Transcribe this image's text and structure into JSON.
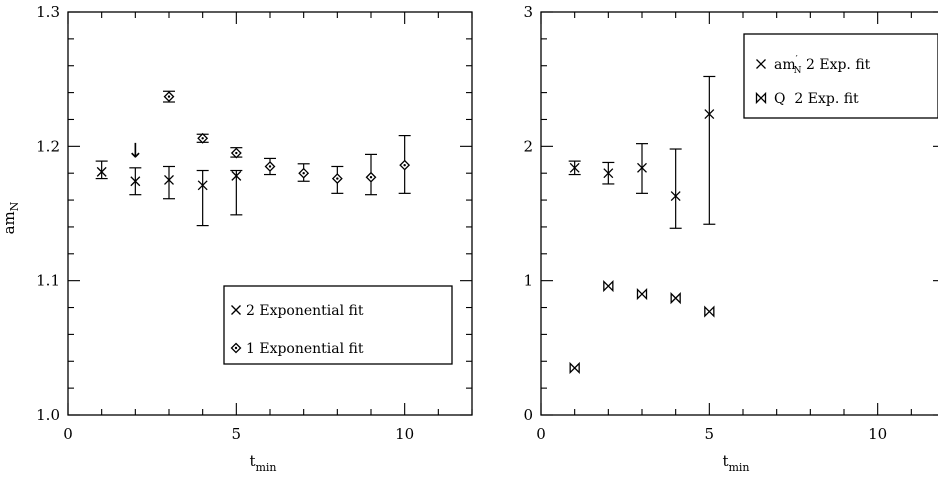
{
  "chart_data": [
    {
      "type": "scatter",
      "xlabel_main": "t",
      "xlabel_sub": "min",
      "ylabel_main": "am",
      "ylabel_sub": "N",
      "xlim": [
        0,
        12
      ],
      "ylim": [
        1.0,
        1.3
      ],
      "xticks": [
        0,
        5,
        10
      ],
      "yticks": [
        "1.0",
        "1.1",
        "1.2",
        "1.3"
      ],
      "ytick_values": [
        1.0,
        1.1,
        1.2,
        1.3
      ],
      "x_minor_step": 1,
      "y_minor_step": 0.02,
      "legend_position": "bottom-right",
      "annotation": {
        "symbol": "↓",
        "x": 2,
        "y": 1.196
      },
      "series": [
        {
          "name": "2 Exponential fit",
          "marker": "x",
          "points": [
            {
              "x": 1,
              "y": 1.181,
              "lo": 1.176,
              "hi": 1.189
            },
            {
              "x": 2,
              "y": 1.174,
              "lo": 1.164,
              "hi": 1.184
            },
            {
              "x": 3,
              "y": 1.175,
              "lo": 1.161,
              "hi": 1.185
            },
            {
              "x": 4,
              "y": 1.171,
              "lo": 1.141,
              "hi": 1.182
            },
            {
              "x": 5,
              "y": 1.178,
              "lo": 1.149,
              "hi": 1.182
            }
          ]
        },
        {
          "name": "1 Exponential fit",
          "marker": "diamond",
          "points": [
            {
              "x": 3,
              "y": 1.237,
              "lo": 1.233,
              "hi": 1.241
            },
            {
              "x": 4,
              "y": 1.206,
              "lo": 1.203,
              "hi": 1.209
            },
            {
              "x": 5,
              "y": 1.195,
              "lo": 1.192,
              "hi": 1.199
            },
            {
              "x": 6,
              "y": 1.185,
              "lo": 1.179,
              "hi": 1.191
            },
            {
              "x": 7,
              "y": 1.18,
              "lo": 1.174,
              "hi": 1.187
            },
            {
              "x": 8,
              "y": 1.176,
              "lo": 1.165,
              "hi": 1.185
            },
            {
              "x": 9,
              "y": 1.177,
              "lo": 1.164,
              "hi": 1.194
            },
            {
              "x": 10,
              "y": 1.186,
              "lo": 1.165,
              "hi": 1.208
            }
          ]
        }
      ]
    },
    {
      "type": "scatter",
      "xlabel_main": "t",
      "xlabel_sub": "min",
      "xlim": [
        0,
        12
      ],
      "ylim": [
        0,
        3
      ],
      "xticks": [
        0,
        5,
        10
      ],
      "yticks": [
        "0",
        "1",
        "2",
        "3"
      ],
      "ytick_values": [
        0,
        1,
        2,
        3
      ],
      "x_minor_step": 1,
      "y_minor_step": 0.2,
      "legend_position": "top-right",
      "series": [
        {
          "name_main": "am",
          "name_sub": "N",
          "name_sup": "′",
          "name_rest": " 2 Exp. fit",
          "marker": "x",
          "points": [
            {
              "x": 1,
              "y": 1.84,
              "lo": 1.79,
              "hi": 1.89
            },
            {
              "x": 2,
              "y": 1.8,
              "lo": 1.72,
              "hi": 1.88
            },
            {
              "x": 3,
              "y": 1.84,
              "lo": 1.65,
              "hi": 2.02
            },
            {
              "x": 4,
              "y": 1.63,
              "lo": 1.39,
              "hi": 1.98
            },
            {
              "x": 5,
              "y": 2.24,
              "lo": 1.42,
              "hi": 2.52
            }
          ]
        },
        {
          "name": "Q  2 Exp. fit",
          "marker": "bowtie",
          "points": [
            {
              "x": 1,
              "y": 0.35
            },
            {
              "x": 2,
              "y": 0.96
            },
            {
              "x": 3,
              "y": 0.9
            },
            {
              "x": 4,
              "y": 0.87
            },
            {
              "x": 5,
              "y": 0.77
            }
          ]
        }
      ]
    }
  ]
}
